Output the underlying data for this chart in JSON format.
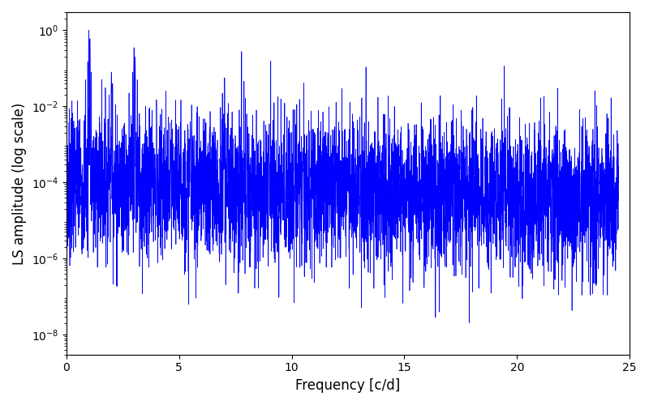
{
  "title": "",
  "xlabel": "Frequency [c/d]",
  "ylabel": "LS amplitude (log scale)",
  "xlim": [
    0,
    25
  ],
  "ylim_log": [
    3e-09,
    3
  ],
  "line_color": "#0000ff",
  "line_width": 0.5,
  "figsize": [
    8.0,
    5.0
  ],
  "dpi": 100,
  "yscale": "log",
  "yticks": [
    1e-08,
    1e-06,
    0.0001,
    0.01,
    1.0
  ],
  "freq_max": 24.5,
  "freq_min": 0.02,
  "n_points": 5000,
  "seed": 7
}
